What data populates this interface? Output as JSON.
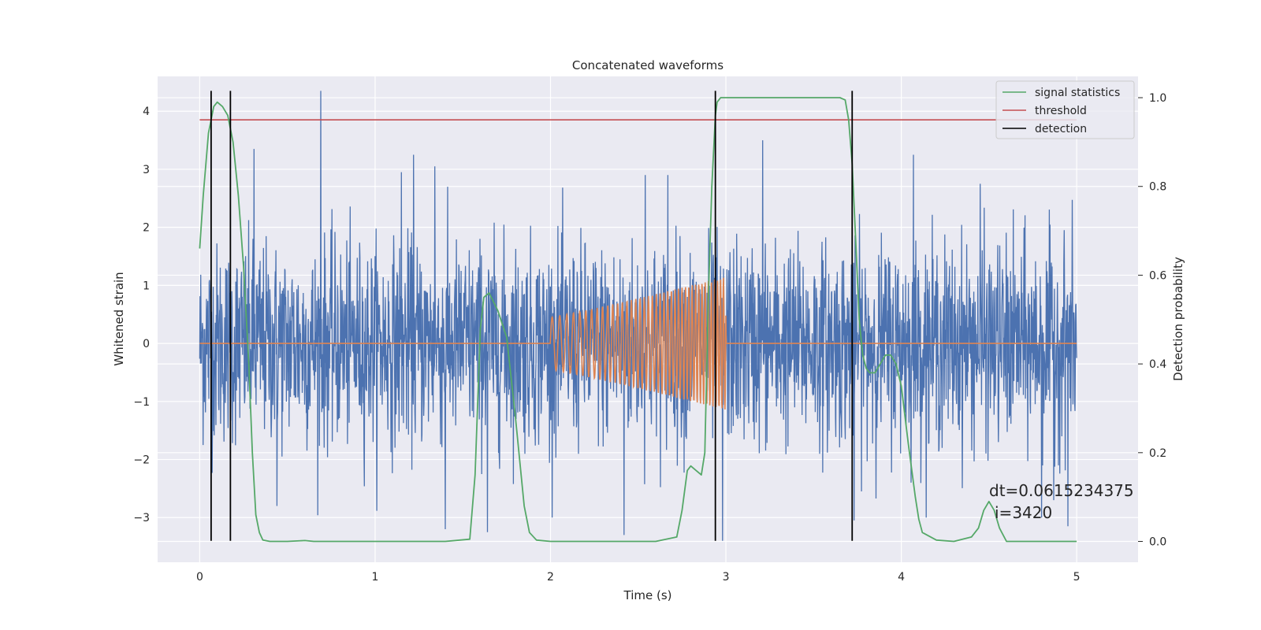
{
  "chart_data": {
    "type": "line",
    "title": "Concatenated waveforms",
    "xlabel": "Time (s)",
    "ylabel": "Whitened strain",
    "ylabel_right": "Detection probability",
    "xlim": [
      -0.24,
      5.35
    ],
    "ylim": [
      -3.77,
      4.6
    ],
    "ylim_right": [
      -0.047,
      1.048
    ],
    "x_ticks": [
      0,
      1,
      2,
      3,
      4,
      5
    ],
    "y_ticks": [
      -3,
      -2,
      -1,
      0,
      1,
      2,
      3,
      4
    ],
    "y_ticks_right": [
      0.0,
      0.2,
      0.4,
      0.6,
      0.8,
      1.0
    ],
    "grid": true,
    "legend_position": "top-right",
    "legend": [
      {
        "label": "signal statistics",
        "color": "#55a868"
      },
      {
        "label": "threshold",
        "color": "#c44e52"
      },
      {
        "label": "detection",
        "color": "#000000"
      }
    ],
    "colors": {
      "background": "#eaeaf2",
      "grid": "#ffffff",
      "strain": "#4c72b0",
      "waveform": "#dd8452",
      "statistics": "#55a868",
      "threshold": "#c44e52",
      "detection": "#000000"
    },
    "strain": {
      "description_free": true,
      "x_range": [
        0,
        5
      ],
      "sigma": 0.85,
      "spikes": [
        {
          "x": 0.69,
          "y": 4.35
        },
        {
          "x": 0.31,
          "y": 3.35
        },
        {
          "x": 1.22,
          "y": 3.25
        },
        {
          "x": 3.21,
          "y": 3.5
        },
        {
          "x": 4.07,
          "y": 3.25
        },
        {
          "x": 1.15,
          "y": 2.95
        },
        {
          "x": 1.34,
          "y": 3.05
        },
        {
          "x": 2.54,
          "y": 2.9
        },
        {
          "x": 2.67,
          "y": 2.9
        },
        {
          "x": 1.64,
          "y": -3.25
        },
        {
          "x": 1.4,
          "y": -3.2
        },
        {
          "x": 2.42,
          "y": -3.3
        },
        {
          "x": 2.98,
          "y": -3.4
        },
        {
          "x": 4.95,
          "y": -3.15
        },
        {
          "x": 4.87,
          "y": -2.7
        },
        {
          "x": 0.44,
          "y": -2.8
        },
        {
          "x": 3.73,
          "y": -3.05
        },
        {
          "x": 4.45,
          "y": 2.75
        },
        {
          "x": 4.8,
          "y": -3.0
        }
      ]
    },
    "waveform": {
      "x_start": 2.0,
      "x_end": 3.0,
      "amp_start": 0.45,
      "amp_end": 1.15,
      "f_start": 22,
      "f_end": 60
    },
    "signal_statistics": {
      "x": [
        0.0,
        0.02,
        0.05,
        0.08,
        0.1,
        0.13,
        0.16,
        0.19,
        0.22,
        0.25,
        0.28,
        0.3,
        0.32,
        0.34,
        0.36,
        0.4,
        0.5,
        0.6,
        0.65,
        0.8,
        1.0,
        1.2,
        1.4,
        1.54,
        1.57,
        1.6,
        1.62,
        1.65,
        1.7,
        1.75,
        1.8,
        1.85,
        1.88,
        1.92,
        2.0,
        2.3,
        2.6,
        2.72,
        2.75,
        2.78,
        2.8,
        2.83,
        2.86,
        2.88,
        2.9,
        2.92,
        2.94,
        2.95,
        2.97,
        3.0,
        3.1,
        3.3,
        3.5,
        3.6,
        3.65,
        3.68,
        3.7,
        3.72,
        3.74,
        3.76,
        3.78,
        3.8,
        3.82,
        3.85,
        3.88,
        3.91,
        3.94,
        3.97,
        4.0,
        4.04,
        4.08,
        4.1,
        4.12,
        4.2,
        4.3,
        4.4,
        4.44,
        4.47,
        4.5,
        4.53,
        4.56,
        4.6,
        4.8,
        5.0
      ],
      "y": [
        0.66,
        0.78,
        0.92,
        0.98,
        0.99,
        0.98,
        0.96,
        0.9,
        0.78,
        0.62,
        0.4,
        0.2,
        0.06,
        0.02,
        0.003,
        0.0,
        0.0,
        0.002,
        0.0,
        0.0,
        0.0,
        0.0,
        0.0,
        0.005,
        0.15,
        0.48,
        0.55,
        0.56,
        0.52,
        0.46,
        0.28,
        0.08,
        0.02,
        0.003,
        0.0,
        0.0,
        0.0,
        0.01,
        0.07,
        0.16,
        0.17,
        0.16,
        0.15,
        0.2,
        0.55,
        0.8,
        0.96,
        0.99,
        1.0,
        1.0,
        1.0,
        1.0,
        1.0,
        1.0,
        1.0,
        0.995,
        0.95,
        0.85,
        0.68,
        0.5,
        0.42,
        0.39,
        0.38,
        0.38,
        0.4,
        0.42,
        0.42,
        0.4,
        0.35,
        0.22,
        0.1,
        0.05,
        0.02,
        0.003,
        0.0,
        0.01,
        0.03,
        0.07,
        0.09,
        0.07,
        0.03,
        0.0,
        0.0,
        0.0
      ]
    },
    "threshold": {
      "value": 0.95,
      "x_range": [
        0,
        5
      ]
    },
    "detections": [
      0.065,
      0.175,
      2.94,
      3.72
    ],
    "detection_y_range": [
      -3.4,
      4.35
    ],
    "annotations": [
      "dt=0.0615234375",
      "i=3420"
    ]
  }
}
